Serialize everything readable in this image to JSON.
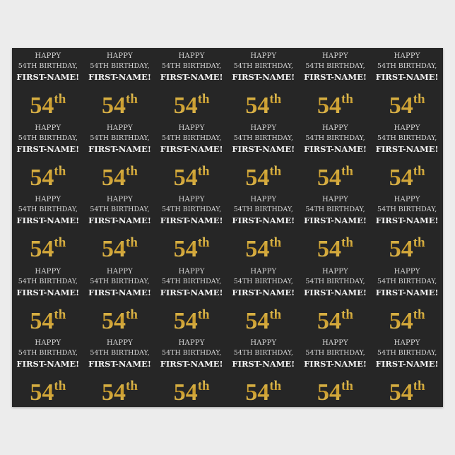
{
  "product": "wrapping-paper",
  "tile": {
    "line1": "HAPPY",
    "line2": "54TH BIRTHDAY,",
    "line3": "FIRST-NAME!",
    "number": "54",
    "suffix": "th"
  },
  "grid": {
    "columns": 6,
    "rows": 5
  },
  "colors": {
    "paper": "#262626",
    "gold": "#d4a93c",
    "text": "#e6e6e6",
    "background": "#ececec"
  }
}
